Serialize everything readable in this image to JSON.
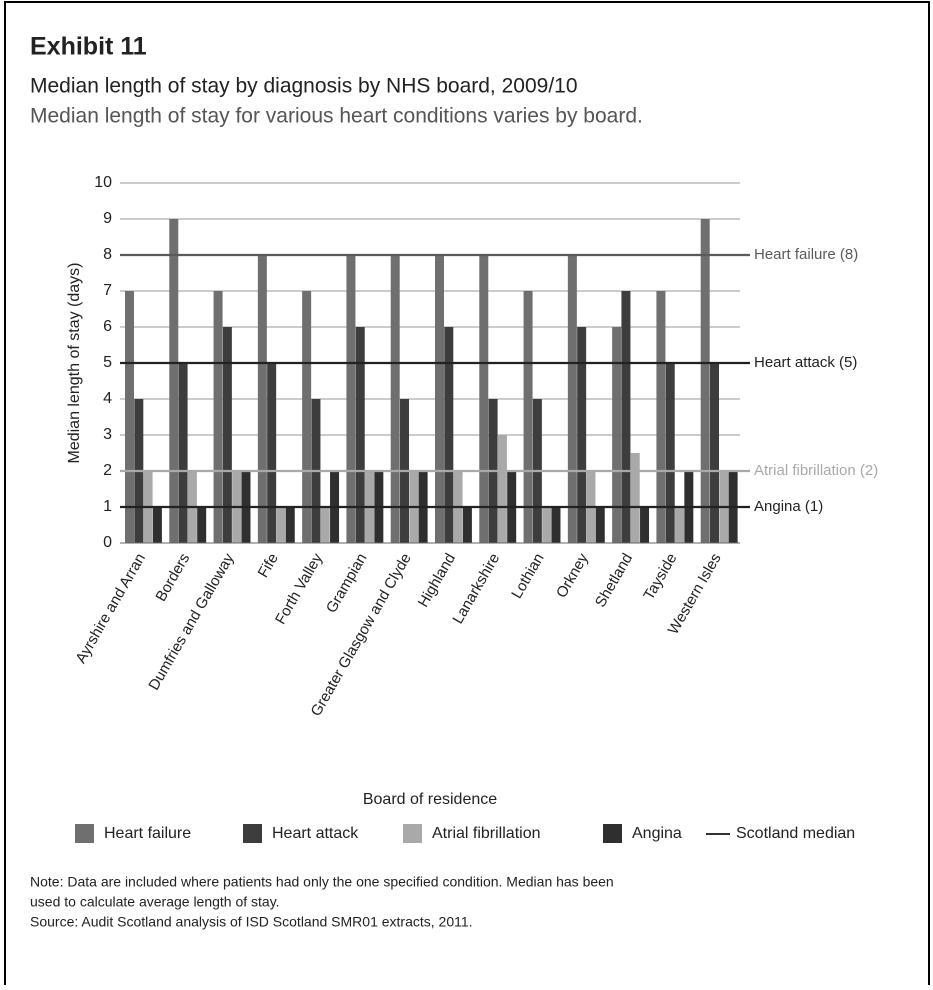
{
  "chart_data": {
    "type": "bar",
    "exhibit": "Exhibit 11",
    "title": "Median length of stay by diagnosis by NHS board, 2009/10",
    "subtitle": "Median length of stay for various heart conditions varies by board.",
    "y_label": "Median length of stay (days)",
    "x_label": "Board of residence",
    "categories": [
      "Ayrshire and Arran",
      "Borders",
      "Dumfries and Galloway",
      "Fife",
      "Forth Valley",
      "Grampian",
      "Greater Glasgow and Clyde",
      "Highland",
      "Lanarkshire",
      "Lothian",
      "Orkney",
      "Shetland",
      "Tayside",
      "Western Isles"
    ],
    "series": [
      {
        "name": "Heart failure",
        "color": "#6f6f6f",
        "values": [
          7,
          9,
          7,
          8,
          7,
          8,
          8,
          8,
          8,
          7,
          8,
          6,
          7,
          9
        ]
      },
      {
        "name": "Heart attack",
        "color": "#3d3d3d",
        "values": [
          4,
          5,
          6,
          5,
          4,
          6,
          4,
          6,
          4,
          4,
          6,
          7,
          5,
          5
        ]
      },
      {
        "name": "Atrial fibrillation",
        "color": "#a9a9a9",
        "values": [
          2,
          2,
          2,
          1,
          1,
          2,
          2,
          2,
          3,
          1,
          2,
          2.5,
          1,
          2
        ]
      },
      {
        "name": "Angina",
        "color": "#2f2f2f",
        "values": [
          1,
          1,
          2,
          1,
          2,
          2,
          2,
          1,
          2,
          1,
          1,
          1,
          2,
          2
        ]
      }
    ],
    "reference_lines": [
      {
        "label": "Heart failure (8)",
        "value": 8,
        "color": "#5a5a5a"
      },
      {
        "label": "Heart attack (5)",
        "value": 5,
        "color": "#222222"
      },
      {
        "label": "Atrial fibrillation (2)",
        "value": 2,
        "color": "#a9a9a9"
      },
      {
        "label": "Angina (1)",
        "value": 1,
        "color": "#222222"
      }
    ],
    "reference_legend": "Scotland median",
    "ylim": [
      0,
      10
    ],
    "yticks": [
      0,
      1,
      2,
      3,
      4,
      5,
      6,
      7,
      8,
      9,
      10
    ],
    "grid": true,
    "notes": [
      "Note: Data are included where patients had only the one specified condition. Median has been",
      "used to calculate average length of stay.",
      "Source: Audit Scotland analysis of ISD Scotland SMR01 extracts, 2011."
    ]
  }
}
